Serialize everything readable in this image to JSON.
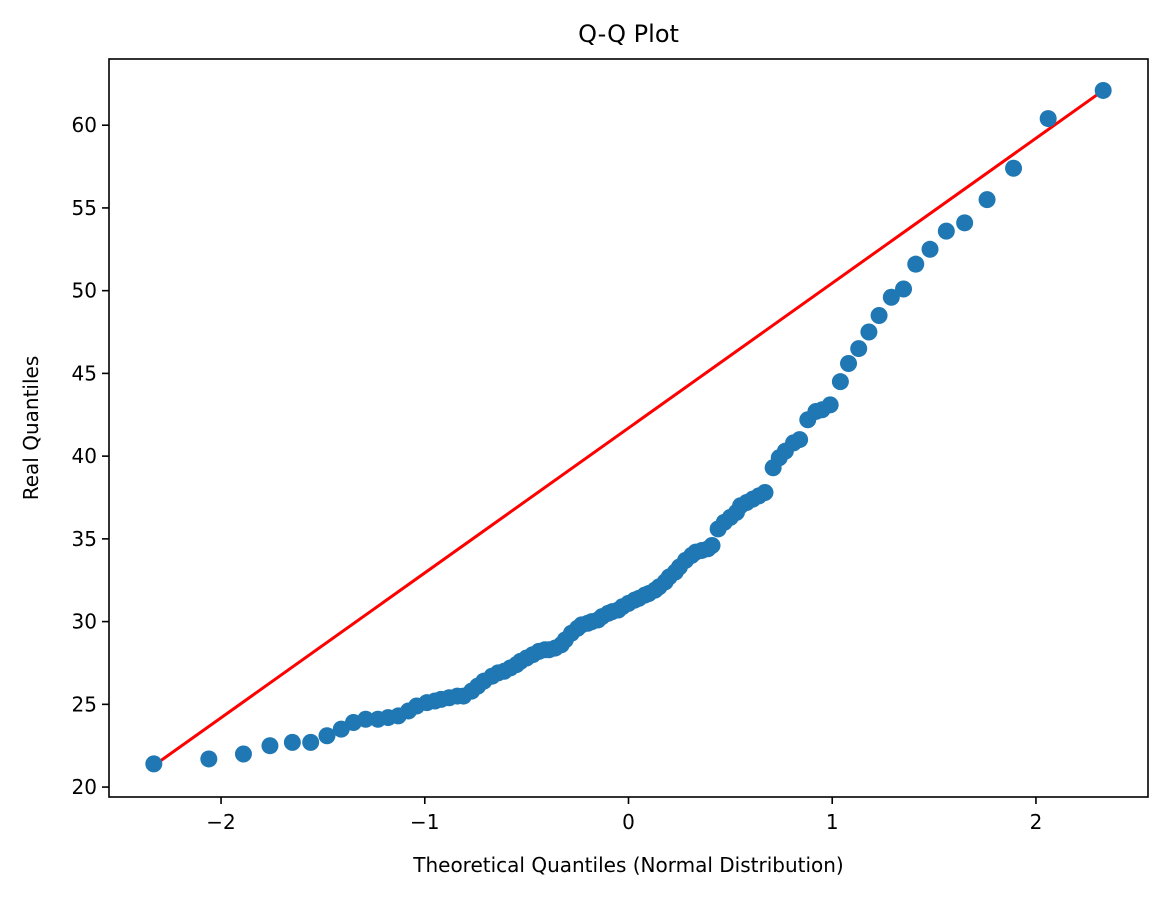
{
  "chart_data": {
    "type": "scatter",
    "title": "Q-Q Plot",
    "xlabel": "Theoretical Quantiles (Normal Distribution)",
    "ylabel": "Real Quantiles",
    "xlim": [
      -2.55,
      2.55
    ],
    "ylim": [
      19.4,
      64.0
    ],
    "grid": false,
    "x_ticks": [
      -2,
      -1,
      0,
      1,
      2
    ],
    "x_tick_labels": [
      "−2",
      "−1",
      "0",
      "1",
      "2"
    ],
    "y_ticks": [
      20,
      25,
      30,
      35,
      40,
      45,
      50,
      55,
      60
    ],
    "y_tick_labels": [
      "20",
      "25",
      "30",
      "35",
      "40",
      "45",
      "50",
      "55",
      "60"
    ],
    "colors": {
      "points": "#1f77b4",
      "reference_line": "#ff0000"
    },
    "reference_line": {
      "x": [
        -2.33,
        2.33
      ],
      "y": [
        21.3,
        62.1
      ]
    },
    "points": [
      [
        -2.33,
        21.4
      ],
      [
        -2.06,
        21.7
      ],
      [
        -1.89,
        22.0
      ],
      [
        -1.76,
        22.5
      ],
      [
        -1.65,
        22.7
      ],
      [
        -1.56,
        22.7
      ],
      [
        -1.48,
        23.1
      ],
      [
        -1.41,
        23.5
      ],
      [
        -1.35,
        23.9
      ],
      [
        -1.29,
        24.1
      ],
      [
        -1.23,
        24.1
      ],
      [
        -1.18,
        24.2
      ],
      [
        -1.13,
        24.3
      ],
      [
        -1.08,
        24.6
      ],
      [
        -1.04,
        24.9
      ],
      [
        -0.99,
        25.1
      ],
      [
        -0.95,
        25.2
      ],
      [
        -0.92,
        25.3
      ],
      [
        -0.88,
        25.4
      ],
      [
        -0.84,
        25.5
      ],
      [
        -0.81,
        25.5
      ],
      [
        -0.77,
        25.8
      ],
      [
        -0.74,
        26.1
      ],
      [
        -0.71,
        26.4
      ],
      [
        -0.67,
        26.7
      ],
      [
        -0.64,
        26.9
      ],
      [
        -0.61,
        27.0
      ],
      [
        -0.58,
        27.2
      ],
      [
        -0.55,
        27.4
      ],
      [
        -0.53,
        27.6
      ],
      [
        -0.5,
        27.8
      ],
      [
        -0.47,
        28.0
      ],
      [
        -0.44,
        28.2
      ],
      [
        -0.41,
        28.3
      ],
      [
        -0.39,
        28.3
      ],
      [
        -0.36,
        28.4
      ],
      [
        -0.33,
        28.6
      ],
      [
        -0.31,
        28.9
      ],
      [
        -0.28,
        29.3
      ],
      [
        -0.25,
        29.6
      ],
      [
        -0.23,
        29.8
      ],
      [
        -0.2,
        29.9
      ],
      [
        -0.18,
        30.0
      ],
      [
        -0.15,
        30.1
      ],
      [
        -0.13,
        30.3
      ],
      [
        -0.1,
        30.5
      ],
      [
        -0.08,
        30.6
      ],
      [
        -0.05,
        30.7
      ],
      [
        -0.03,
        30.9
      ],
      [
        0.0,
        31.1
      ],
      [
        0.03,
        31.3
      ],
      [
        0.05,
        31.4
      ],
      [
        0.08,
        31.6
      ],
      [
        0.1,
        31.7
      ],
      [
        0.13,
        31.9
      ],
      [
        0.15,
        32.1
      ],
      [
        0.18,
        32.4
      ],
      [
        0.2,
        32.7
      ],
      [
        0.23,
        33.0
      ],
      [
        0.25,
        33.3
      ],
      [
        0.28,
        33.7
      ],
      [
        0.31,
        34.0
      ],
      [
        0.33,
        34.2
      ],
      [
        0.36,
        34.3
      ],
      [
        0.39,
        34.4
      ],
      [
        0.41,
        34.6
      ],
      [
        0.44,
        35.6
      ],
      [
        0.47,
        36.0
      ],
      [
        0.5,
        36.3
      ],
      [
        0.53,
        36.6
      ],
      [
        0.55,
        37.0
      ],
      [
        0.58,
        37.2
      ],
      [
        0.61,
        37.4
      ],
      [
        0.64,
        37.6
      ],
      [
        0.67,
        37.8
      ],
      [
        0.71,
        39.3
      ],
      [
        0.74,
        39.9
      ],
      [
        0.77,
        40.3
      ],
      [
        0.81,
        40.8
      ],
      [
        0.84,
        41.0
      ],
      [
        0.88,
        42.2
      ],
      [
        0.92,
        42.7
      ],
      [
        0.95,
        42.8
      ],
      [
        0.99,
        43.1
      ],
      [
        1.04,
        44.5
      ],
      [
        1.08,
        45.6
      ],
      [
        1.13,
        46.5
      ],
      [
        1.18,
        47.5
      ],
      [
        1.23,
        48.5
      ],
      [
        1.29,
        49.6
      ],
      [
        1.35,
        50.1
      ],
      [
        1.41,
        51.6
      ],
      [
        1.48,
        52.5
      ],
      [
        1.56,
        53.6
      ],
      [
        1.65,
        54.1
      ],
      [
        1.76,
        55.5
      ],
      [
        1.89,
        57.4
      ],
      [
        2.06,
        60.4
      ],
      [
        2.33,
        62.1
      ]
    ]
  }
}
